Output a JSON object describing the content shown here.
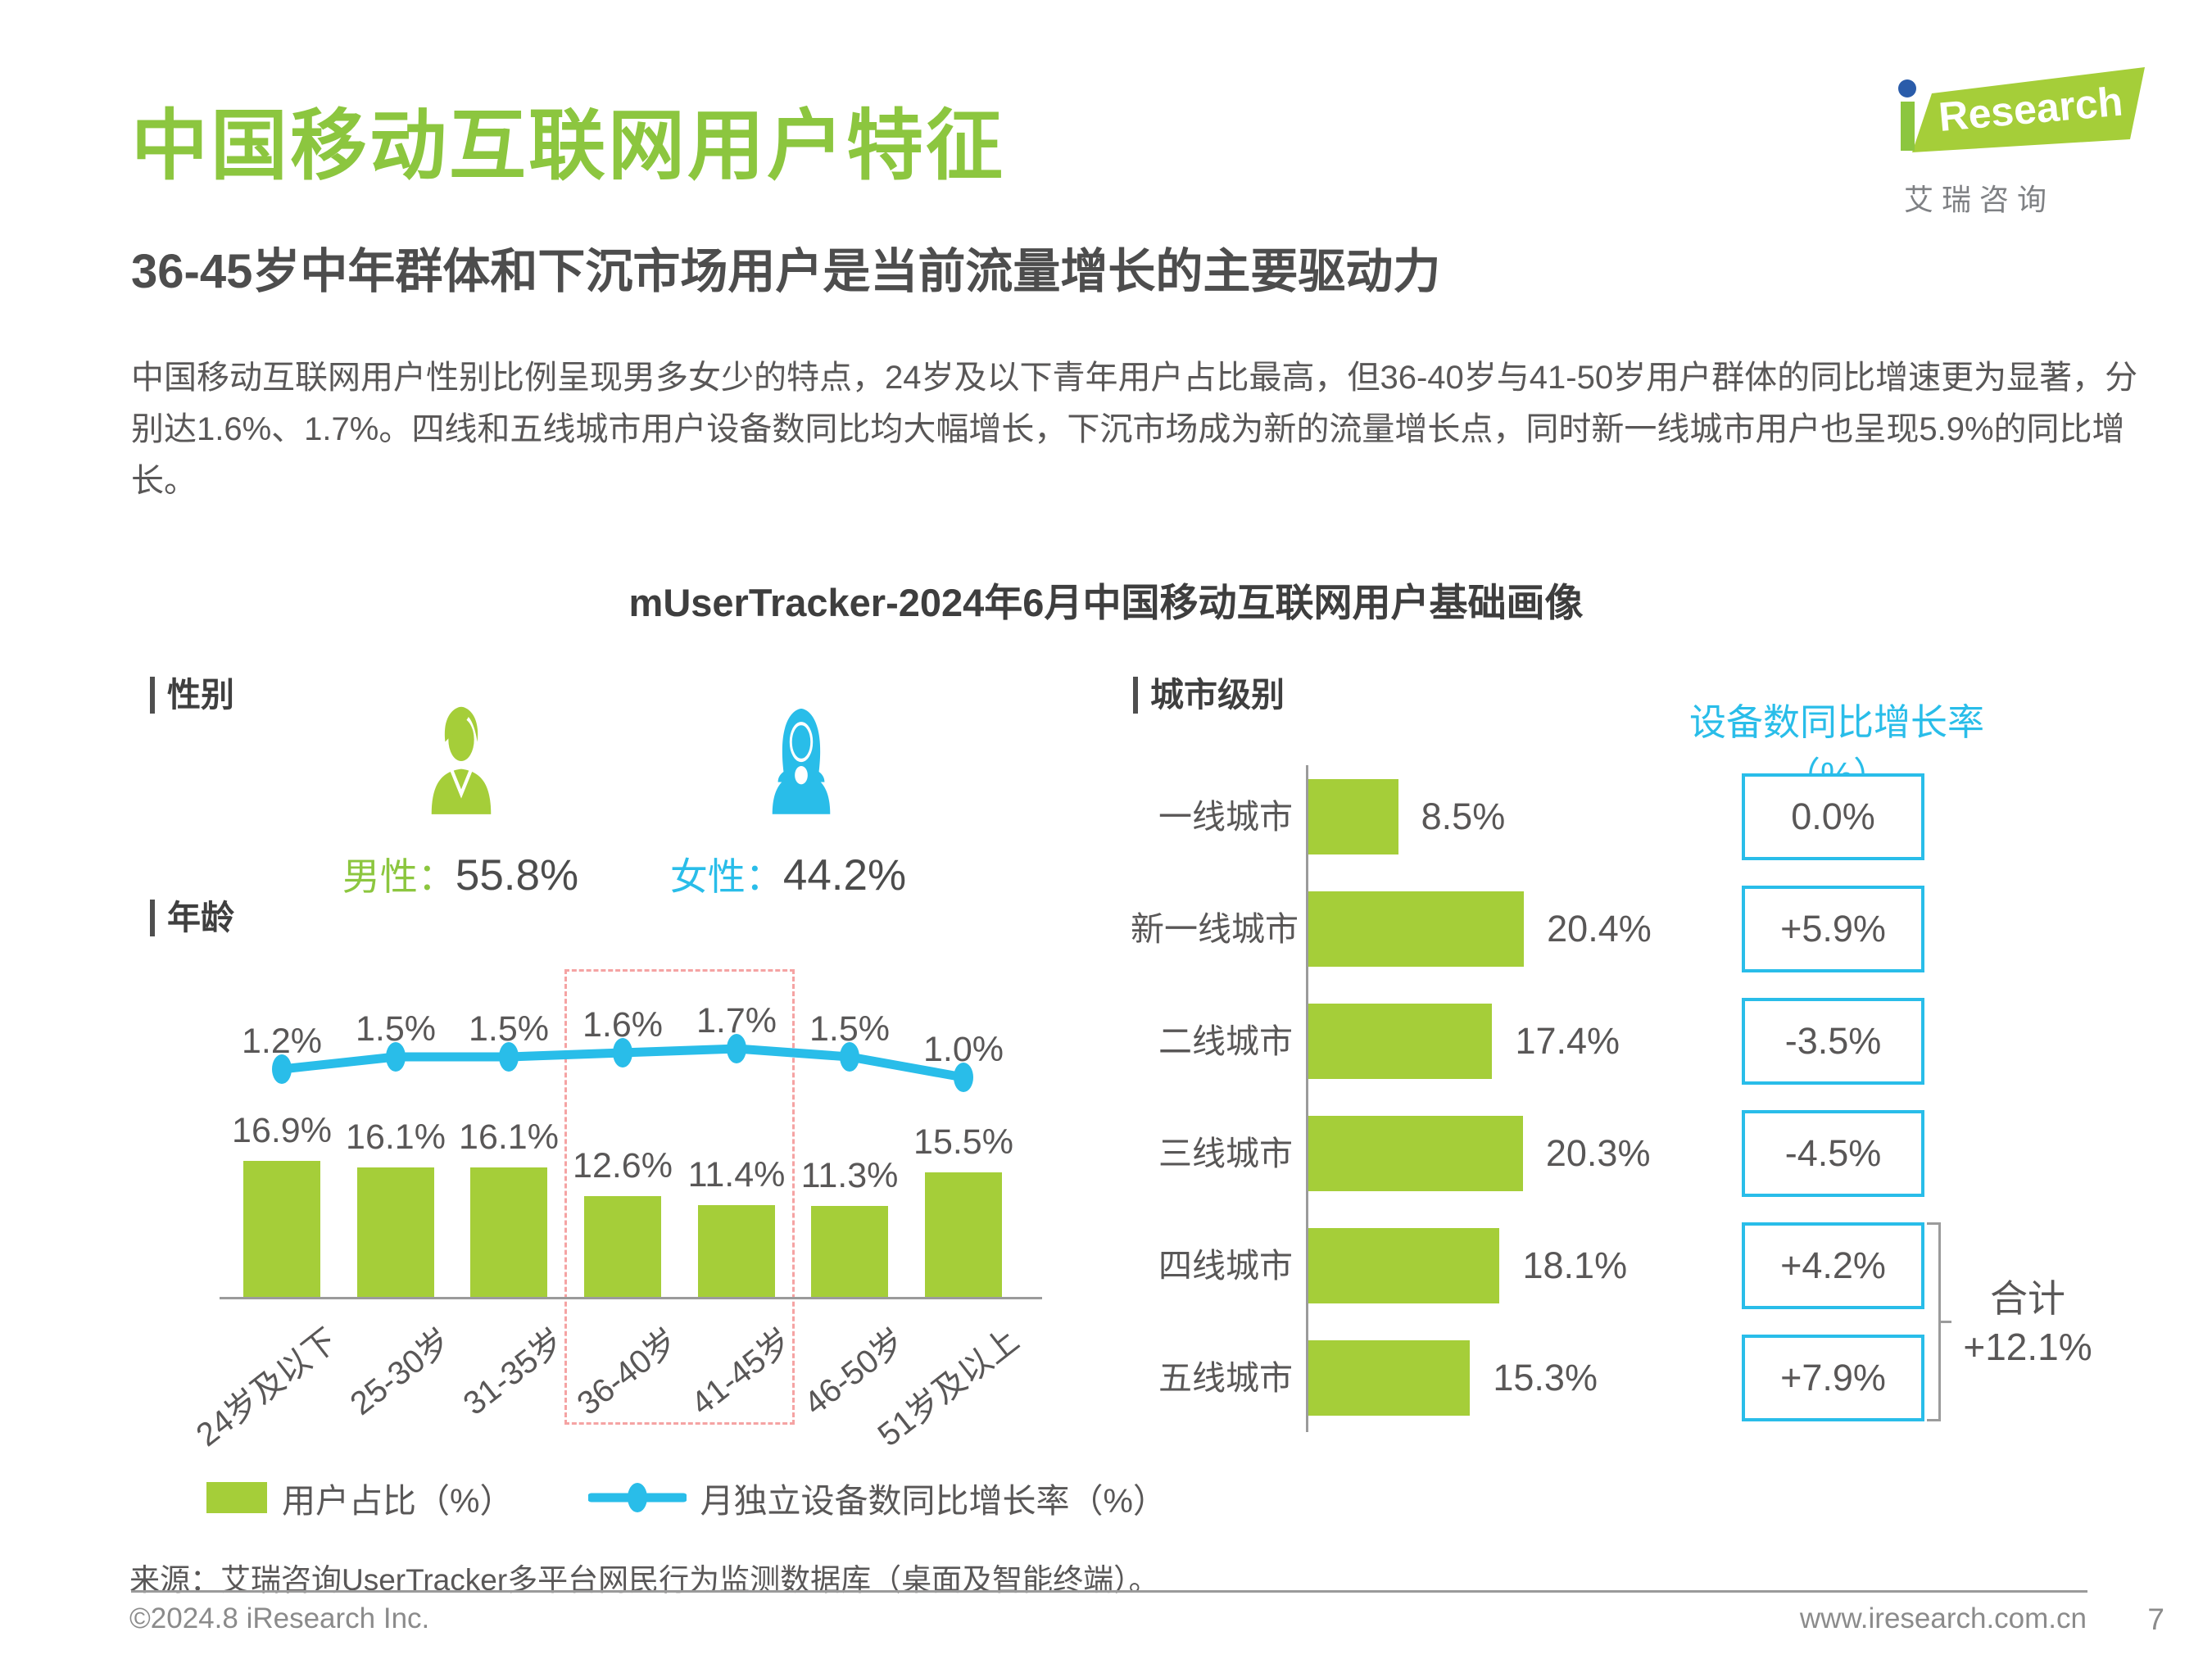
{
  "page": {
    "title": "中国移动互联网用户特征",
    "subtitle": "36-45岁中年群体和下沉市场用户是当前流量增长的主要驱动力",
    "body": "中国移动互联网用户性别比例呈现男多女少的特点，24岁及以下青年用户占比最高，但36-40岁与41-50岁用户群体的同比增速更为显著，分别达1.6%、1.7%。四线和五线城市用户设备数同比均大幅增长，下沉市场成为新的流量增长点，同时新一线城市用户也呈现5.9%的同比增长。",
    "chart_title": "mUserTracker-2024年6月中国移动互联网用户基础画像",
    "source": "来源：艾瑞咨询UserTracker多平台网民行为监测数据库（桌面及智能终端）。",
    "footer_left": "©2024.8 iResearch Inc.",
    "footer_right": "www.iresearch.com.cn",
    "page_number": "7"
  },
  "logo": {
    "brand_i": "i",
    "brand_rest": "Research",
    "cn": "艾 瑞 咨 询"
  },
  "sections": {
    "gender": "性别",
    "age": "年龄",
    "city": "城市级别",
    "growth_header": "设备数同比增长率（%）"
  },
  "gender": {
    "male_label": "男性：",
    "male_value": "55.8%",
    "female_label": "女性：",
    "female_value": "44.2%"
  },
  "legend": {
    "bar": "用户占比（%）",
    "line": "月独立设备数同比增长率（%）"
  },
  "colors": {
    "green": "#a5ce39",
    "title_green": "#8cc63f",
    "blue": "#29bde9",
    "text_gray": "#595757",
    "highlight_pink": "#f5a3a3",
    "logo_dot_blue": "#2a5caa"
  },
  "chart_data": [
    {
      "type": "bar",
      "title": "年龄",
      "categories": [
        "24岁及以下",
        "25-30岁",
        "31-35岁",
        "36-40岁",
        "41-45岁",
        "46-50岁",
        "51岁及以上"
      ],
      "series": [
        {
          "name": "用户占比（%）",
          "type": "bar",
          "values": [
            16.9,
            16.1,
            16.1,
            12.6,
            11.4,
            11.3,
            15.5
          ],
          "labels": [
            "16.9%",
            "16.1%",
            "16.1%",
            "12.6%",
            "11.4%",
            "11.3%",
            "15.5%"
          ]
        },
        {
          "name": "月独立设备数同比增长率（%）",
          "type": "line",
          "values": [
            1.2,
            1.5,
            1.5,
            1.6,
            1.7,
            1.5,
            1.0
          ],
          "labels": [
            "1.2%",
            "1.5%",
            "1.5%",
            "1.6%",
            "1.7%",
            "1.5%",
            "1.0%"
          ]
        }
      ],
      "highlight_categories": [
        "36-40岁",
        "41-45岁"
      ],
      "legend_position": "bottom",
      "grid": false
    },
    {
      "type": "bar",
      "orientation": "horizontal",
      "title": "城市级别",
      "categories": [
        "一线城市",
        "新一线城市",
        "二线城市",
        "三线城市",
        "四线城市",
        "五线城市"
      ],
      "series": [
        {
          "name": "用户占比（%）",
          "values": [
            8.5,
            20.4,
            17.4,
            20.3,
            18.1,
            15.3
          ],
          "labels": [
            "8.5%",
            "20.4%",
            "17.4%",
            "20.3%",
            "18.1%",
            "15.3%"
          ]
        },
        {
          "name": "设备数同比增长率（%）",
          "values": [
            0.0,
            5.9,
            -3.5,
            -4.5,
            4.2,
            7.9
          ],
          "labels": [
            "0.0%",
            "+5.9%",
            "-3.5%",
            "-4.5%",
            "+4.2%",
            "+7.9%"
          ]
        }
      ],
      "total": {
        "label": "合计",
        "value": "+12.1%",
        "span": [
          "四线城市",
          "五线城市"
        ]
      }
    }
  ]
}
